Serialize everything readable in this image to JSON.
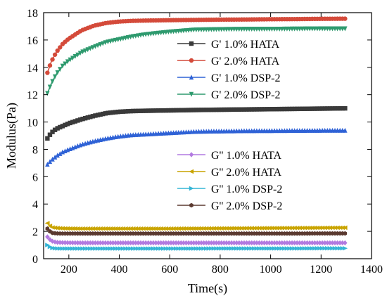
{
  "chart_data": {
    "type": "line",
    "title": "",
    "xlabel": "Time(s)",
    "ylabel": "Modulus(Pa)",
    "xlim": [
      100,
      1400
    ],
    "ylim": [
      0,
      18
    ],
    "xticks": [
      200,
      400,
      600,
      800,
      1000,
      1200,
      1400
    ],
    "yticks": [
      0,
      2,
      4,
      6,
      8,
      10,
      12,
      14,
      16,
      18
    ],
    "grid": false,
    "legend_position": "inside, two groups (upper-right and mid-right)",
    "x": [
      115,
      130,
      150,
      175,
      200,
      250,
      300,
      350,
      400,
      450,
      500,
      600,
      700,
      800,
      900,
      1000,
      1100,
      1200,
      1300
    ],
    "series": [
      {
        "name": "G' 1.0% HATA",
        "color": "#3a3a3a",
        "marker": "square",
        "values": [
          8.8,
          9.2,
          9.5,
          9.7,
          9.9,
          10.2,
          10.45,
          10.65,
          10.75,
          10.8,
          10.82,
          10.85,
          10.88,
          10.9,
          10.92,
          10.94,
          10.96,
          10.98,
          11.0
        ]
      },
      {
        "name": "G' 2.0% HATA",
        "color": "#d44a3a",
        "marker": "circle",
        "values": [
          13.6,
          14.4,
          15.1,
          15.7,
          16.1,
          16.7,
          17.05,
          17.25,
          17.35,
          17.4,
          17.42,
          17.45,
          17.47,
          17.49,
          17.5,
          17.52,
          17.53,
          17.55,
          17.56
        ]
      },
      {
        "name": "G' 1.0% DSP-2",
        "color": "#2f62d6",
        "marker": "triangle-up",
        "values": [
          6.9,
          7.2,
          7.5,
          7.8,
          8.0,
          8.35,
          8.6,
          8.8,
          8.95,
          9.05,
          9.1,
          9.2,
          9.3,
          9.33,
          9.35,
          9.36,
          9.37,
          9.38,
          9.38
        ]
      },
      {
        "name": "G' 2.0% DSP-2",
        "color": "#2e9a6e",
        "marker": "triangle-down",
        "values": [
          12.1,
          12.8,
          13.5,
          14.1,
          14.5,
          15.1,
          15.5,
          15.85,
          16.05,
          16.25,
          16.4,
          16.6,
          16.75,
          16.78,
          16.8,
          16.8,
          16.82,
          16.83,
          16.83
        ]
      },
      {
        "name": "G'' 1.0% HATA",
        "color": "#b27ae0",
        "marker": "diamond",
        "values": [
          1.6,
          1.3,
          1.2,
          1.18,
          1.17,
          1.16,
          1.16,
          1.16,
          1.16,
          1.16,
          1.16,
          1.16,
          1.16,
          1.16,
          1.16,
          1.16,
          1.16,
          1.16,
          1.16
        ]
      },
      {
        "name": "G'' 2.0% HATA",
        "color": "#c9a400",
        "marker": "triangle-left",
        "values": [
          2.6,
          2.3,
          2.25,
          2.22,
          2.21,
          2.2,
          2.2,
          2.2,
          2.2,
          2.2,
          2.2,
          2.2,
          2.21,
          2.22,
          2.23,
          2.24,
          2.25,
          2.26,
          2.27
        ]
      },
      {
        "name": "G'' 1.0% DSP-2",
        "color": "#35b5d6",
        "marker": "triangle-right",
        "values": [
          1.0,
          0.8,
          0.75,
          0.74,
          0.74,
          0.74,
          0.74,
          0.74,
          0.74,
          0.74,
          0.74,
          0.74,
          0.74,
          0.75,
          0.75,
          0.75,
          0.75,
          0.76,
          0.76
        ]
      },
      {
        "name": "G'' 2.0% DSP-2",
        "color": "#5b3a30",
        "marker": "hexagon",
        "values": [
          2.2,
          1.9,
          1.85,
          1.84,
          1.84,
          1.84,
          1.84,
          1.84,
          1.84,
          1.84,
          1.84,
          1.84,
          1.84,
          1.84,
          1.84,
          1.84,
          1.84,
          1.85,
          1.85
        ]
      }
    ],
    "legend_groups": [
      [
        "G' 1.0% HATA",
        "G' 2.0% HATA",
        "G' 1.0% DSP-2",
        "G' 2.0% DSP-2"
      ],
      [
        "G'' 1.0% HATA",
        "G'' 2.0% HATA",
        "G'' 1.0% DSP-2",
        "G'' 2.0% DSP-2"
      ]
    ]
  }
}
